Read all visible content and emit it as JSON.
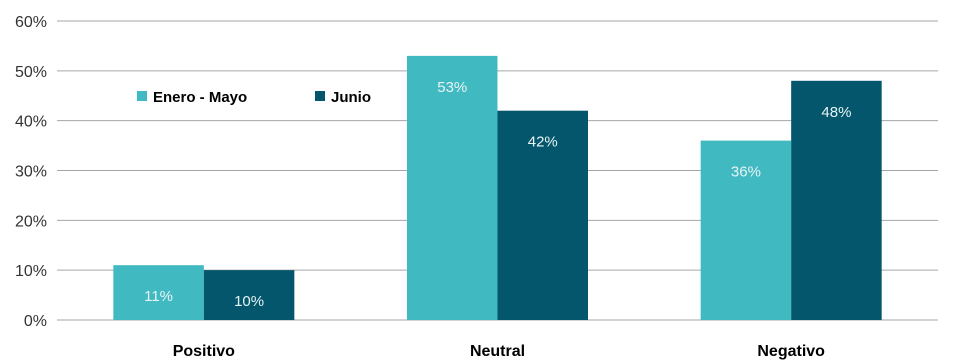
{
  "chart_data": {
    "type": "bar",
    "categories": [
      "Positivo",
      "Neutral",
      "Negativo"
    ],
    "series": [
      {
        "name": "Enero - Mayo",
        "values": [
          11,
          53,
          36
        ],
        "color": "#41b9c1"
      },
      {
        "name": "Junio",
        "values": [
          10,
          42,
          48
        ],
        "color": "#03566b"
      }
    ],
    "data_labels": [
      [
        "11%",
        "53%",
        "36%"
      ],
      [
        "10%",
        "42%",
        "48%"
      ]
    ],
    "y_ticks": [
      {
        "value": 0,
        "label": "0%"
      },
      {
        "value": 10,
        "label": "10%"
      },
      {
        "value": 20,
        "label": "20%"
      },
      {
        "value": 30,
        "label": "30%"
      },
      {
        "value": 40,
        "label": "40%"
      },
      {
        "value": 50,
        "label": "50%"
      },
      {
        "value": 60,
        "label": "60%"
      }
    ],
    "ylim": [
      0,
      60
    ],
    "grid": true,
    "legend_position": "top-left",
    "title": "",
    "xlabel": "",
    "ylabel": ""
  }
}
